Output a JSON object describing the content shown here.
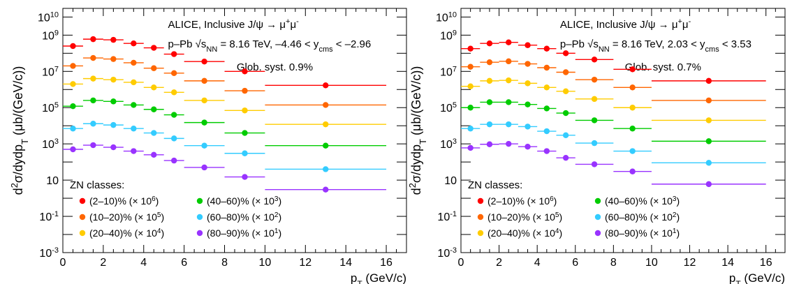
{
  "chart_data": [
    {
      "type": "scatter",
      "panel": "left",
      "xlabel": "p_T (GeV/c)",
      "ylabel": "d²σ/dydp_T (μb/(GeV/c))",
      "xlim": [
        0,
        17
      ],
      "ylim": [
        0.001,
        30000000000
      ],
      "yscale": "log",
      "x_ticks": [
        "0",
        "2",
        "4",
        "6",
        "8",
        "10",
        "12",
        "14",
        "16"
      ],
      "y_ticks": [
        "10⁻³",
        "10⁻¹",
        "10",
        "10³",
        "10⁵",
        "10⁷",
        "10⁹",
        "10¹⁰"
      ],
      "annotations": [
        "ALICE, Inclusive J/ψ → μ⁺μ⁻",
        "p–Pb √s_NN = 8.16 TeV, –4.46 < y_cms < –2.96",
        "Glob. syst. 0.9%"
      ],
      "legend_title": "ZN classes:",
      "legend_position": "bottom-left",
      "bins": [
        [
          0,
          1
        ],
        [
          1,
          2
        ],
        [
          2,
          3
        ],
        [
          3,
          4
        ],
        [
          4,
          5
        ],
        [
          5,
          6
        ],
        [
          6,
          8
        ],
        [
          8,
          10
        ],
        [
          10,
          16
        ]
      ],
      "series": [
        {
          "name": "(2–10)% (× 10⁶)",
          "color": "#ff0000",
          "values": [
            250000000,
            600000000,
            550000000,
            350000000,
            200000000,
            90000000,
            35000000,
            10000000,
            1700000
          ]
        },
        {
          "name": "(10–20)% (× 10⁵)",
          "color": "#ff6600",
          "values": [
            20000000,
            55000000,
            48000000,
            30000000,
            15000000,
            8000000,
            3000000,
            850000,
            140000
          ]
        },
        {
          "name": "(20–40)% (× 10⁴)",
          "color": "#ffcc00",
          "values": [
            2000000,
            4000000,
            3500000,
            2500000,
            1300000,
            700000,
            250000,
            70000,
            12000
          ]
        },
        {
          "name": "(40–60)% (× 10³)",
          "color": "#00cc00",
          "values": [
            120000,
            250000,
            220000,
            140000,
            80000,
            40000,
            15000,
            4000,
            800
          ]
        },
        {
          "name": "(60–80)% (× 10²)",
          "color": "#33ccff",
          "values": [
            7000,
            13000,
            11000,
            7000,
            4000,
            2000,
            800,
            300,
            40
          ]
        },
        {
          "name": "(80–90)% (× 10¹)",
          "color": "#9933ff",
          "values": [
            500,
            850,
            650,
            400,
            250,
            120,
            50,
            15,
            3
          ]
        }
      ]
    },
    {
      "type": "scatter",
      "panel": "right",
      "xlabel": "p_T (GeV/c)",
      "ylabel": "d²σ/dydp_T (μb/(GeV/c))",
      "xlim": [
        0,
        17
      ],
      "ylim": [
        0.001,
        30000000000
      ],
      "yscale": "log",
      "x_ticks": [
        "0",
        "2",
        "4",
        "6",
        "8",
        "10",
        "12",
        "14",
        "16"
      ],
      "y_ticks": [
        "10⁻³",
        "10⁻¹",
        "10",
        "10³",
        "10⁵",
        "10⁷",
        "10⁹",
        "10¹⁰"
      ],
      "annotations": [
        "ALICE, Inclusive J/ψ → μ⁺μ⁻",
        "p–Pb √s_NN = 8.16 TeV, 2.03 < y_cms < 3.53",
        "Glob. syst. 0.7%"
      ],
      "legend_title": "ZN classes:",
      "legend_position": "bottom-left",
      "bins": [
        [
          0,
          1
        ],
        [
          1,
          2
        ],
        [
          2,
          3
        ],
        [
          3,
          4
        ],
        [
          4,
          5
        ],
        [
          5,
          6
        ],
        [
          6,
          8
        ],
        [
          8,
          10
        ],
        [
          10,
          16
        ]
      ],
      "series": [
        {
          "name": "(2–10)% (× 10⁶)",
          "color": "#ff0000",
          "values": [
            180000000,
            350000000,
            400000000,
            280000000,
            180000000,
            100000000,
            45000000,
            13000000,
            3000000
          ]
        },
        {
          "name": "(10–20)% (× 10⁵)",
          "color": "#ff6600",
          "values": [
            18000000,
            32000000,
            36000000,
            26000000,
            16000000,
            9000000,
            3500000,
            1300000,
            250000
          ]
        },
        {
          "name": "(20–40)% (× 10⁴)",
          "color": "#ffcc00",
          "values": [
            1500000,
            3000000,
            3200000,
            2200000,
            1300000,
            800000,
            300000,
            100000,
            20000
          ]
        },
        {
          "name": "(40–60)% (× 10³)",
          "color": "#00cc00",
          "values": [
            100000,
            200000,
            200000,
            150000,
            90000,
            50000,
            20000,
            7000,
            1400
          ]
        },
        {
          "name": "(60–80)% (× 10²)",
          "color": "#33ccff",
          "values": [
            7000,
            12000,
            12000,
            9000,
            5000,
            3000,
            1100,
            400,
            90
          ]
        },
        {
          "name": "(80–90)% (× 10¹)",
          "color": "#9933ff",
          "values": [
            600,
            950,
            1000,
            700,
            400,
            170,
            75,
            30,
            6
          ]
        }
      ]
    }
  ]
}
